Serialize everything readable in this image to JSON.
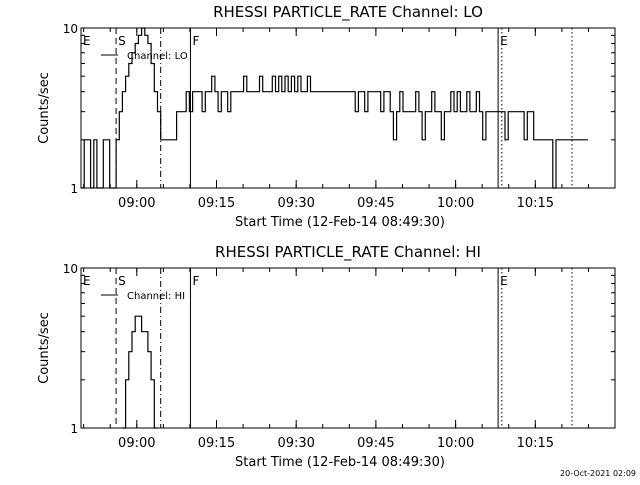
{
  "chart_data": [
    {
      "type": "line",
      "title": "RHESSI PARTICLE_RATE Channel: LO",
      "xlabel": "Start Time (12-Feb-14 08:49:30)",
      "ylabel": "Counts/sec",
      "x_units": "minutes after 08:49:30",
      "xlim": [
        0,
        100.5
      ],
      "ylim": [
        1,
        10
      ],
      "yscale": "log",
      "y_ticks": [
        {
          "v": 1,
          "label": "1"
        },
        {
          "v": 10,
          "label": "10"
        }
      ],
      "x_ticks": [
        {
          "v": 10.5,
          "label": "09:00"
        },
        {
          "v": 25.5,
          "label": "09:15"
        },
        {
          "v": 40.5,
          "label": "09:30"
        },
        {
          "v": 55.5,
          "label": "09:45"
        },
        {
          "v": 70.5,
          "label": "10:00"
        },
        {
          "v": 85.5,
          "label": "10:15"
        }
      ],
      "legend": {
        "label": "Channel: LO",
        "placement": "top-left"
      },
      "markers": [
        {
          "label": "E",
          "x": 0,
          "style": "dashed"
        },
        {
          "label": "S",
          "x": 6.6,
          "style": "dashed"
        },
        {
          "label": "",
          "x": 15,
          "style": "dashdot"
        },
        {
          "label": "F",
          "x": 20.6,
          "style": "solid"
        },
        {
          "label": "E",
          "x": 78.5,
          "style": "solid"
        },
        {
          "label": "",
          "x": 79.2,
          "style": "dotted"
        },
        {
          "label": "",
          "x": 92.4,
          "style": "dotted"
        }
      ],
      "series": [
        {
          "name": "Channel: LO",
          "x": [
            0,
            0.6,
            1.2,
            1.8,
            2.4,
            3,
            3.6,
            4.2,
            4.8,
            5.4,
            6,
            6.6,
            7.2,
            7.8,
            8.4,
            9,
            9.6,
            10.2,
            10.8,
            11.4,
            12,
            12.6,
            13.2,
            13.8,
            14.4,
            15,
            15.6,
            16.2,
            16.8,
            17.4,
            18,
            18.6,
            19.2,
            19.8,
            20.4,
            21,
            21.6,
            22.2,
            22.8,
            23.4,
            24,
            24.6,
            25.2,
            25.8,
            26.4,
            27,
            27.6,
            28.2,
            28.8,
            29.4,
            30,
            30.6,
            31.2,
            31.8,
            32.4,
            33,
            33.6,
            34.2,
            34.8,
            35.4,
            36,
            36.6,
            37.2,
            37.8,
            38.4,
            39,
            39.6,
            40.2,
            40.8,
            41.4,
            42,
            42.6,
            43.2,
            43.8,
            44.4,
            45,
            45.6,
            46.2,
            46.8,
            47.4,
            48,
            48.6,
            49.2,
            49.8,
            50.4,
            51,
            51.6,
            52.2,
            52.8,
            53.4,
            54,
            54.6,
            55.2,
            55.8,
            56.4,
            57,
            57.6,
            58.2,
            58.8,
            59.4,
            60,
            60.6,
            61.2,
            61.8,
            62.4,
            63,
            63.6,
            64.2,
            64.8,
            65.4,
            66,
            66.6,
            67.2,
            67.8,
            68.4,
            69,
            69.6,
            70.2,
            70.8,
            71.4,
            72,
            72.6,
            73.2,
            73.8,
            74.4,
            75,
            75.6,
            76.2,
            76.8,
            77.4,
            78,
            78.6,
            79.2,
            79.8,
            80.4,
            81,
            81.6,
            82.2,
            82.8,
            83.4,
            84,
            84.6,
            85.2,
            85.8,
            86.4,
            87,
            87.6,
            88.2,
            88.8,
            89.4,
            90,
            90.6,
            91.2,
            91.8,
            92.4,
            93,
            93.6,
            94.2,
            94.8
          ],
          "y": [
            1,
            2,
            2,
            1,
            2,
            1,
            1,
            2,
            2,
            1,
            1,
            2,
            3,
            4,
            5,
            6,
            7,
            8,
            9,
            10,
            9,
            8,
            6,
            4,
            3,
            2,
            2,
            2,
            2,
            2,
            3,
            3,
            3,
            4,
            3,
            4,
            4,
            4,
            3,
            4,
            4,
            5,
            4,
            3,
            4,
            4,
            3,
            4,
            4,
            4,
            4,
            5,
            4,
            4,
            4,
            4,
            5,
            4,
            4,
            4,
            5,
            4,
            5,
            4,
            5,
            4,
            5,
            4,
            5,
            4,
            4,
            5,
            4,
            4,
            4,
            4,
            4,
            4,
            4,
            4,
            4,
            4,
            4,
            4,
            4,
            4,
            3,
            4,
            4,
            3,
            4,
            4,
            4,
            4,
            3,
            4,
            4,
            3,
            2,
            3,
            4,
            3,
            3,
            3,
            3,
            4,
            3,
            2,
            3,
            3,
            4,
            3,
            3,
            2,
            3,
            3,
            4,
            3,
            4,
            3,
            3,
            4,
            3,
            3,
            4,
            3,
            2,
            3,
            3,
            3,
            3,
            3,
            3,
            2,
            3,
            3,
            3,
            3,
            3,
            2,
            3,
            3,
            2,
            2,
            2,
            2,
            2,
            2,
            1,
            2,
            2,
            2,
            2,
            2,
            2,
            2,
            2,
            2,
            2
          ]
        }
      ]
    },
    {
      "type": "line",
      "title": "RHESSI PARTICLE_RATE Channel: HI",
      "xlabel": "Start Time (12-Feb-14 08:49:30)",
      "ylabel": "Counts/sec",
      "x_units": "minutes after 08:49:30",
      "xlim": [
        0,
        100.5
      ],
      "ylim": [
        1,
        10
      ],
      "yscale": "log",
      "y_ticks": [
        {
          "v": 1,
          "label": "1"
        },
        {
          "v": 10,
          "label": "10"
        }
      ],
      "x_ticks": [
        {
          "v": 10.5,
          "label": "09:00"
        },
        {
          "v": 25.5,
          "label": "09:15"
        },
        {
          "v": 40.5,
          "label": "09:30"
        },
        {
          "v": 55.5,
          "label": "09:45"
        },
        {
          "v": 70.5,
          "label": "10:00"
        },
        {
          "v": 85.5,
          "label": "10:15"
        }
      ],
      "legend": {
        "label": "Channel: HI",
        "placement": "top-left"
      },
      "markers": [
        {
          "label": "E",
          "x": 0,
          "style": "dashed"
        },
        {
          "label": "S",
          "x": 6.6,
          "style": "dashed"
        },
        {
          "label": "",
          "x": 15,
          "style": "dashdot"
        },
        {
          "label": "F",
          "x": 20.6,
          "style": "solid"
        },
        {
          "label": "E",
          "x": 78.5,
          "style": "solid"
        },
        {
          "label": "",
          "x": 79.2,
          "style": "dotted"
        },
        {
          "label": "",
          "x": 92.4,
          "style": "dotted"
        }
      ],
      "series": [
        {
          "name": "Channel: HI",
          "x": [
            7.8,
            8.4,
            9,
            9.6,
            10.2,
            10.8,
            11.4,
            12,
            12.6,
            13.2,
            13.8
          ],
          "y": [
            1,
            2,
            3,
            4,
            5,
            5,
            4,
            4,
            3,
            2,
            1
          ]
        }
      ]
    }
  ],
  "footer": {
    "timestamp": "20-Oct-2021 02:09"
  }
}
